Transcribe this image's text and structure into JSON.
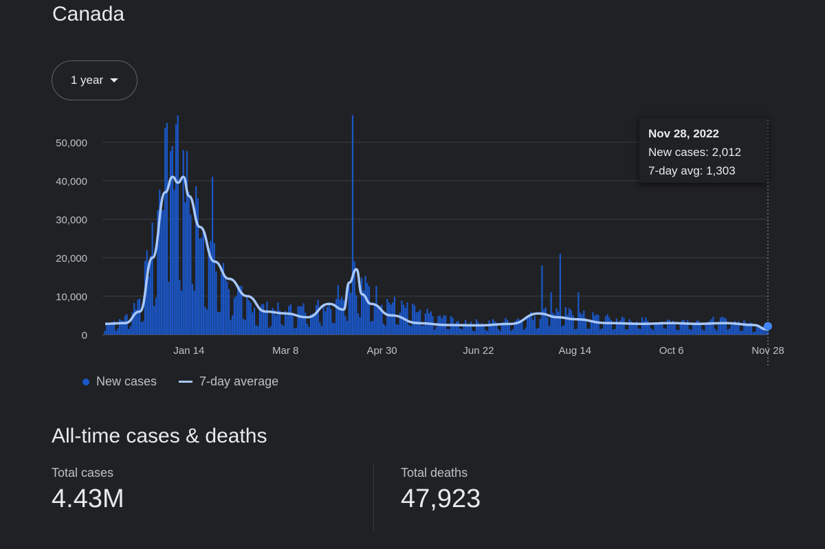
{
  "location": "Canada",
  "range_selector": {
    "label": "1 year",
    "icon": "caret-down-icon"
  },
  "tooltip": {
    "date": "Nov 28, 2022",
    "new_cases": "New cases: 2,012",
    "avg": "7-day avg: 1,303"
  },
  "legend": {
    "new_cases": "New cases",
    "avg": "7-day average"
  },
  "section_title": "All-time cases & deaths",
  "stats": {
    "total_cases_label": "Total cases",
    "total_cases": "4.43M",
    "total_deaths_label": "Total deaths",
    "total_deaths": "47,923"
  },
  "colors": {
    "bars": "#1a57c9",
    "avg_line": "#a8c7fa",
    "grid": "#3c4043",
    "marker": "#4285f4"
  },
  "chart_data": {
    "type": "bar",
    "title": "",
    "x_start": "2021-11-29",
    "x_end": "2022-11-28",
    "ylim": [
      0,
      50000
    ],
    "yticks": [
      0,
      10000,
      20000,
      30000,
      40000,
      50000
    ],
    "ytick_labels": [
      "0",
      "10,000",
      "20,000",
      "30,000",
      "40,000",
      "50,000"
    ],
    "xtick_labels": [
      "Jan 14",
      "Mar 8",
      "Apr 30",
      "Jun 22",
      "Aug 14",
      "Oct 6",
      "Nov 28"
    ],
    "xtick_dates": [
      "2022-01-14",
      "2022-03-08",
      "2022-04-30",
      "2022-06-22",
      "2022-08-14",
      "2022-10-06",
      "2022-11-28"
    ],
    "grid": true,
    "legend": "bottom-left",
    "series": [
      {
        "name": "New cases",
        "type": "bar",
        "key_dates": [
          "2021-11-29",
          "2021-12-10",
          "2021-12-18",
          "2021-12-25",
          "2021-12-31",
          "2022-01-03",
          "2022-01-07",
          "2022-01-10",
          "2022-01-14",
          "2022-01-20",
          "2022-01-28",
          "2022-02-05",
          "2022-02-15",
          "2022-02-25",
          "2022-03-08",
          "2022-03-20",
          "2022-04-01",
          "2022-04-09",
          "2022-04-15",
          "2022-04-20",
          "2022-04-30",
          "2022-05-10",
          "2022-05-25",
          "2022-06-10",
          "2022-06-22",
          "2022-07-05",
          "2022-07-20",
          "2022-08-01",
          "2022-08-14",
          "2022-09-01",
          "2022-09-15",
          "2022-10-06",
          "2022-10-20",
          "2022-11-05",
          "2022-11-28"
        ],
        "key_values": [
          2800,
          4000,
          9000,
          22000,
          38000,
          44000,
          45000,
          41000,
          36000,
          30000,
          18000,
          13000,
          8000,
          6500,
          6000,
          6500,
          8000,
          12000,
          14000,
          12000,
          9000,
          7000,
          5000,
          3500,
          3000,
          3200,
          4500,
          6000,
          5000,
          4000,
          3500,
          3500,
          3500,
          3500,
          2012
        ],
        "spikes": [
          {
            "date": "2022-01-02",
            "value": 55000
          },
          {
            "date": "2022-01-05",
            "value": 49000
          },
          {
            "date": "2022-01-08",
            "value": 57000
          },
          {
            "date": "2022-01-11",
            "value": 48000
          },
          {
            "date": "2022-01-27",
            "value": 41000
          },
          {
            "date": "2022-04-14",
            "value": 57000
          },
          {
            "date": "2022-04-15",
            "value": 19000
          },
          {
            "date": "2022-07-27",
            "value": 18000
          },
          {
            "date": "2022-08-06",
            "value": 21000
          },
          {
            "date": "2022-08-01",
            "value": 11000
          },
          {
            "date": "2022-08-16",
            "value": 11000
          }
        ]
      },
      {
        "name": "7-day average",
        "type": "line",
        "x": [
          "2021-11-29",
          "2021-12-10",
          "2021-12-18",
          "2021-12-25",
          "2022-01-01",
          "2022-01-05",
          "2022-01-08",
          "2022-01-11",
          "2022-01-14",
          "2022-01-20",
          "2022-01-28",
          "2022-02-05",
          "2022-02-15",
          "2022-02-25",
          "2022-03-08",
          "2022-03-20",
          "2022-04-01",
          "2022-04-09",
          "2022-04-12",
          "2022-04-16",
          "2022-04-19",
          "2022-04-24",
          "2022-05-05",
          "2022-05-20",
          "2022-06-05",
          "2022-06-22",
          "2022-07-10",
          "2022-07-25",
          "2022-08-05",
          "2022-08-14",
          "2022-09-01",
          "2022-09-20",
          "2022-10-06",
          "2022-10-20",
          "2022-11-05",
          "2022-11-20",
          "2022-11-28"
        ],
        "y": [
          2800,
          3000,
          6000,
          20000,
          37000,
          41000,
          39500,
          41000,
          36000,
          28000,
          19000,
          14500,
          10000,
          6000,
          5500,
          4500,
          8000,
          6500,
          13500,
          17000,
          10500,
          8000,
          5000,
          3000,
          2500,
          2400,
          2800,
          5500,
          4500,
          4000,
          3000,
          2800,
          3000,
          2800,
          3000,
          2500,
          1303
        ]
      }
    ],
    "highlight": {
      "date": "2022-11-28",
      "new_cases": 2012,
      "avg": 1303
    }
  }
}
